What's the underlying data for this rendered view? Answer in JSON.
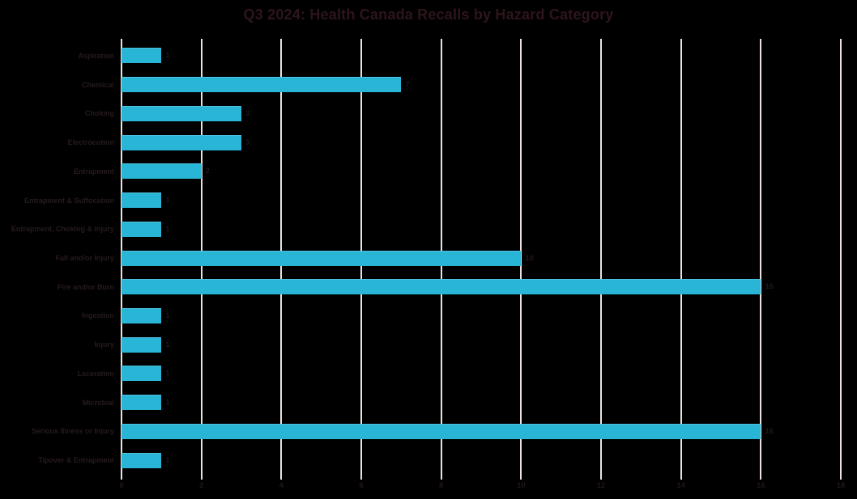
{
  "title": "Q3 2024: Health Canada Recalls by Hazard Category",
  "colors": {
    "background": "#000000",
    "bar": "#29b5d6",
    "gridline": "#ece1e1",
    "title_text": "#2e151b",
    "category_text": "#261a1e",
    "value_text": "#22161a"
  },
  "chart_data": {
    "type": "bar",
    "orientation": "horizontal",
    "title": "Q3 2024: Health Canada Recalls by Hazard Category",
    "categories": [
      "Aspiration",
      "Chemical",
      "Choking",
      "Electrocution",
      "Entrapment",
      "Entrapment & Suffocation",
      "Entrapment, Choking & Injury",
      "Fall and/or Injury",
      "Fire and/or Burn",
      "Ingestion",
      "Injury",
      "Laceration",
      "Microbial",
      "Serious Illness or Injury",
      "Tipover & Entrapment"
    ],
    "values": [
      1,
      7,
      3,
      3,
      2,
      1,
      1,
      10,
      16,
      1,
      1,
      1,
      1,
      16,
      1
    ],
    "data_labels": [
      "1",
      "7",
      "3",
      "3",
      "2",
      "1",
      "1",
      "10",
      "16",
      "1",
      "1",
      "1",
      "1",
      "16",
      "1"
    ],
    "xlabel": "",
    "ylabel": "",
    "xlim": [
      0,
      18
    ],
    "x_ticks": [
      0,
      2,
      4,
      6,
      8,
      10,
      12,
      14,
      16,
      18
    ],
    "grid": "vertical-gridlines-on",
    "legend": "none"
  }
}
